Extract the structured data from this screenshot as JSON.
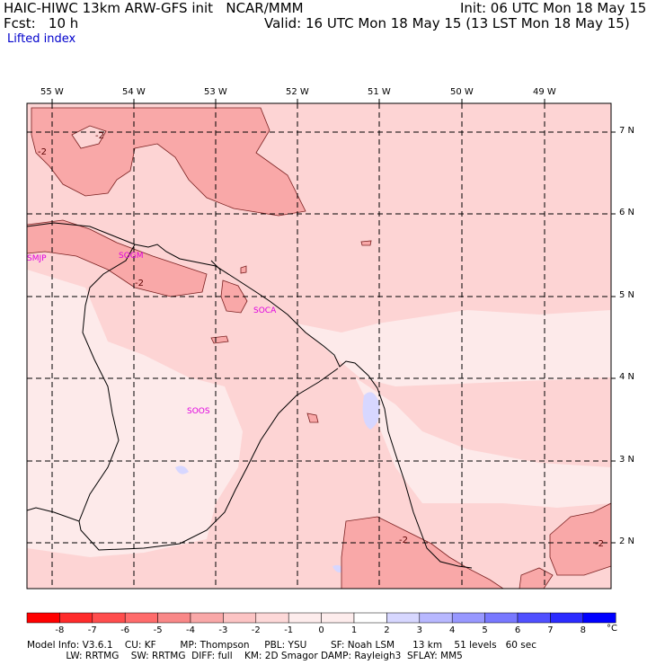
{
  "header": {
    "line1_left": "HAIC-HIWC 13km ARW-GFS init   NCAR/MMM",
    "line1_right": "Init: 06 UTC Mon 18 May 15",
    "line2_left": "Fcst:   10 h",
    "line2_right": "Valid: 16 UTC Mon 18 May 15 (13 LST Mon 18 May 15)",
    "field_name": "Lifted index"
  },
  "map": {
    "lon_labels": [
      "55 W",
      "54 W",
      "53 W",
      "52 W",
      "51 W",
      "50 W",
      "49 W"
    ],
    "lat_labels": [
      "7 N",
      "6 N",
      "5 N",
      "4 N",
      "3 N",
      "2 N"
    ],
    "stations": [
      "SMJP",
      "SOGM",
      "SOCA",
      "SOOS"
    ],
    "contour_labels": [
      "-2",
      "-2",
      "-2",
      "-2",
      "-2"
    ],
    "colors": {
      "neg1": "#fdd4d4",
      "neg2": "#f9a8a8",
      "pos0": "#fdeaea",
      "pos1": "#d7d7ff",
      "coast": "#000000",
      "station": "#e000e0"
    }
  },
  "colorbar": {
    "labels": [
      "-8",
      "-7",
      "-6",
      "-5",
      "-4",
      "-3",
      "-2",
      "-1",
      "0",
      "1",
      "2",
      "3",
      "4",
      "5",
      "6",
      "7",
      "8"
    ],
    "unit": "°C",
    "colors": [
      "#ff0000",
      "#ff2b2b",
      "#ff4d4d",
      "#ff6b6b",
      "#f98888",
      "#f9a8a8",
      "#fcc4c4",
      "#fdd8d8",
      "#fdecec",
      "#ffffff",
      "#d7d7ff",
      "#b8b8ff",
      "#9898ff",
      "#7878ff",
      "#5050ff",
      "#2b2bff",
      "#0000ff"
    ]
  },
  "footer": {
    "line1": "Model Info: V3.6.1    CU: KF        MP: Thompson     PBL: YSU        SF: Noah LSM      13 km    51 levels   60 sec",
    "line2": "             LW: RRTMG    SW: RRTMG  DIFF: full    KM: 2D Smagor DAMP: Rayleigh3  SFLAY: MM5"
  }
}
